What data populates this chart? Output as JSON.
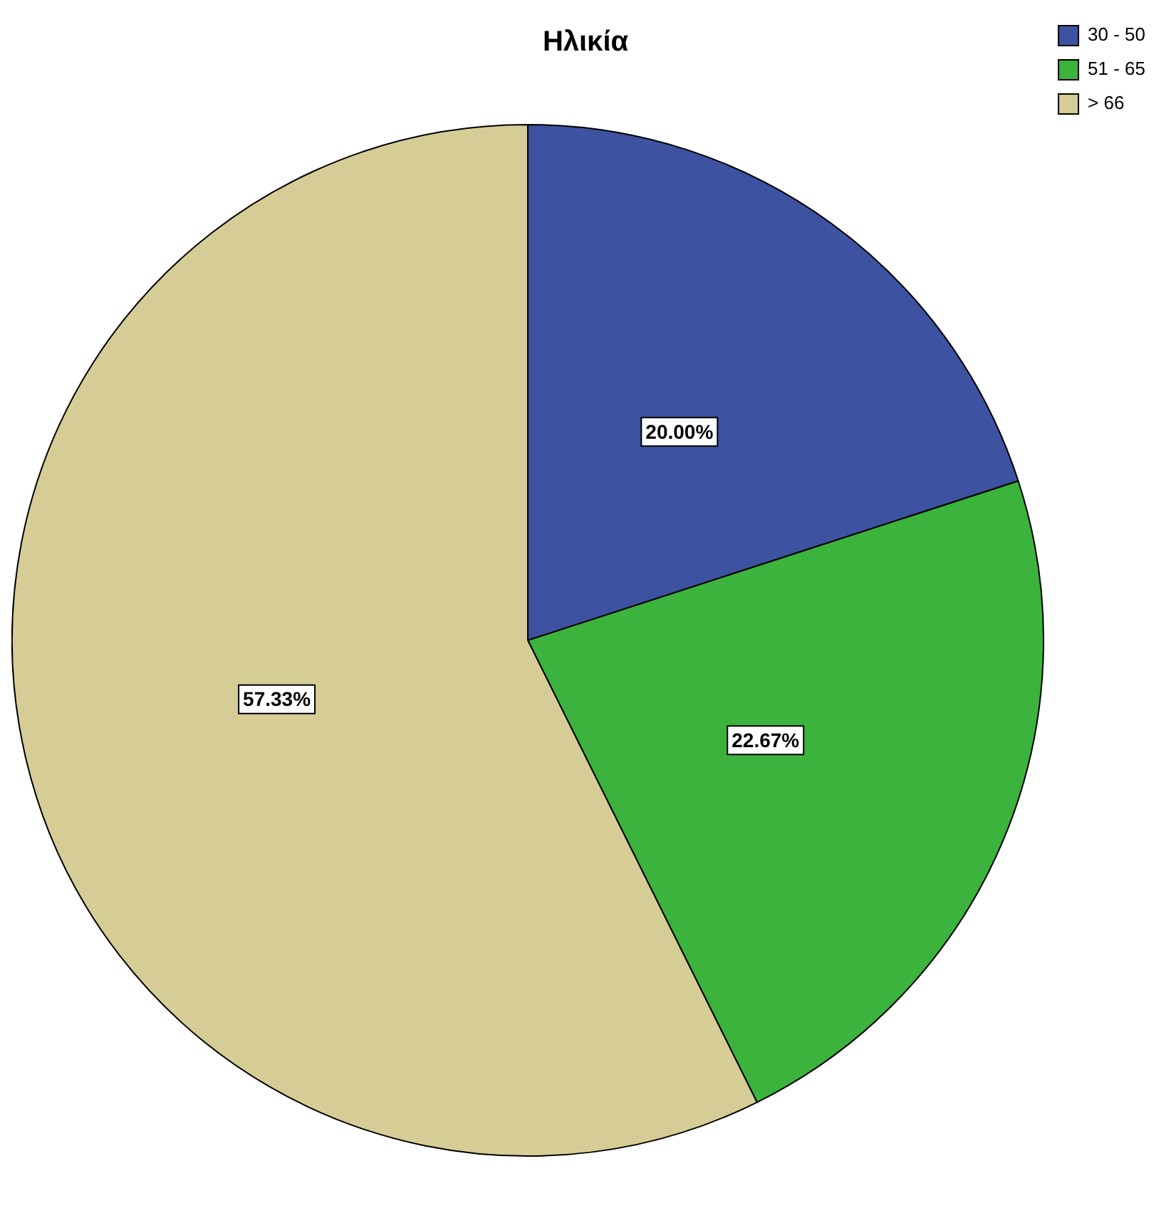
{
  "chart_data": {
    "type": "pie",
    "title": "Ηλικία",
    "categories": [
      "30 - 50",
      "51 - 65",
      "> 66"
    ],
    "values": [
      20.0,
      22.67,
      57.33
    ],
    "value_labels": [
      "20.00%",
      "22.67%",
      "57.33%"
    ],
    "colors": [
      "#3d52a1",
      "#3bb33c",
      "#d5cd95"
    ],
    "legend": "top right"
  }
}
